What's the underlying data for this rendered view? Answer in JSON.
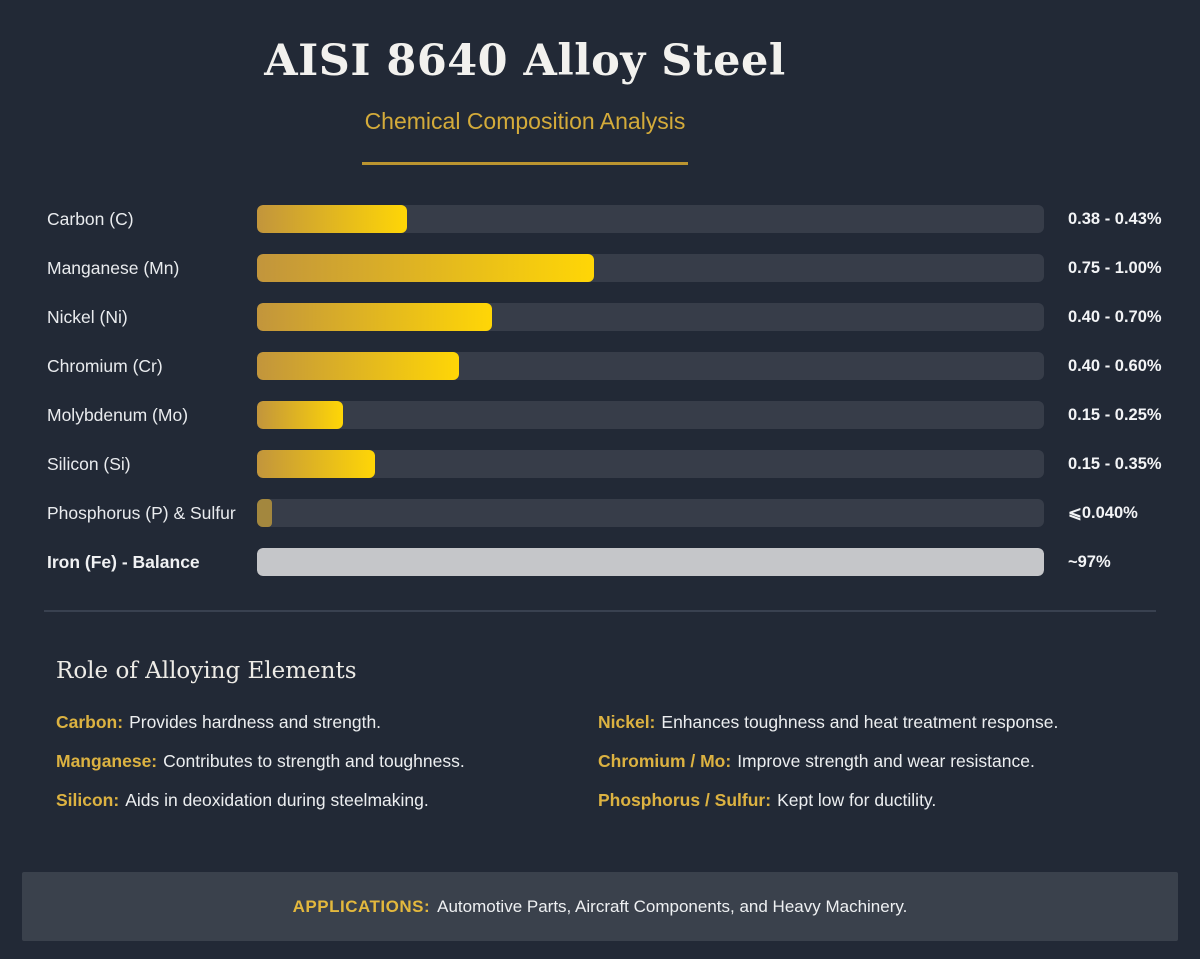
{
  "header": {
    "title": "AISI 8640 Alloy Steel",
    "subtitle": "Chemical Composition Analysis"
  },
  "colors": {
    "background": "#222936",
    "bar_track": "#373d49",
    "bar_gradient_start": "#c2953c",
    "bar_gradient_end": "#ffd606",
    "trace_bar": "#a3873e",
    "iron_bar": "#c5c6c9",
    "accent_gold": "#d4ab3a",
    "footer_band": "#3a414c"
  },
  "chart_data": {
    "type": "bar",
    "orientation": "horizontal",
    "title": "AISI 8640 Alloy Steel",
    "subtitle": "Chemical Composition Analysis",
    "categories": [
      "Carbon (C)",
      "Manganese (Mn)",
      "Nickel (Ni)",
      "Chromium (Cr)",
      "Molybdenum (Mo)",
      "Silicon (Si)",
      "Phosphorus (P) & Sulfur",
      "Iron (Fe) - Balance"
    ],
    "value_labels": [
      "0.38 - 0.43%",
      "0.75 - 1.00%",
      "0.40 - 0.70%",
      "0.40 - 0.60%",
      "0.15 - 0.25%",
      "0.15 - 0.35%",
      "⩽0.040%",
      "~97%"
    ],
    "range_min_pct": [
      0.38,
      0.75,
      0.4,
      0.4,
      0.15,
      0.15,
      0,
      97
    ],
    "range_max_pct": [
      0.43,
      1.0,
      0.7,
      0.6,
      0.25,
      0.35,
      0.04,
      97
    ],
    "legend": false,
    "grid": false,
    "rows": [
      {
        "label": "Carbon (C)",
        "value": "0.38 - 0.43%",
        "pct": 19.0,
        "style": "gold",
        "label_bold": false
      },
      {
        "label": "Manganese (Mn)",
        "value": "0.75 - 1.00%",
        "pct": 42.8,
        "style": "gold",
        "label_bold": false
      },
      {
        "label": "Nickel (Ni)",
        "value": "0.40 - 0.70%",
        "pct": 29.9,
        "style": "gold",
        "label_bold": false
      },
      {
        "label": "Chromium (Cr)",
        "value": "0.40 - 0.60%",
        "pct": 25.7,
        "style": "gold",
        "label_bold": false
      },
      {
        "label": "Molybdenum (Mo)",
        "value": "0.15 - 0.25%",
        "pct": 10.9,
        "style": "gold",
        "label_bold": false
      },
      {
        "label": "Silicon (Si)",
        "value": "0.15 - 0.35%",
        "pct": 15.0,
        "style": "gold",
        "label_bold": false
      },
      {
        "label": "Phosphorus (P) & Sulfur",
        "value": "⩽0.040%",
        "pct": 1.9,
        "style": "nub",
        "label_bold": false
      },
      {
        "label": "Iron (Fe) - Balance",
        "value": "~97%",
        "pct": 100,
        "style": "gray",
        "label_bold": true
      }
    ]
  },
  "roles": {
    "heading": "Role of Alloying Elements",
    "items": [
      {
        "term": "Carbon:",
        "desc": "Provides hardness and strength."
      },
      {
        "term": "Nickel:",
        "desc": "Enhances toughness and heat treatment response."
      },
      {
        "term": "Manganese:",
        "desc": "Contributes to strength and toughness."
      },
      {
        "term": "Chromium / Mo:",
        "desc": "Improve strength and wear resistance."
      },
      {
        "term": "Silicon:",
        "desc": "Aids in deoxidation during steelmaking."
      },
      {
        "term": "Phosphorus / Sulfur:",
        "desc": "Kept low for ductility."
      }
    ]
  },
  "footer": {
    "label": "APPLICATIONS:",
    "text": "Automotive Parts, Aircraft Components, and Heavy Machinery."
  }
}
